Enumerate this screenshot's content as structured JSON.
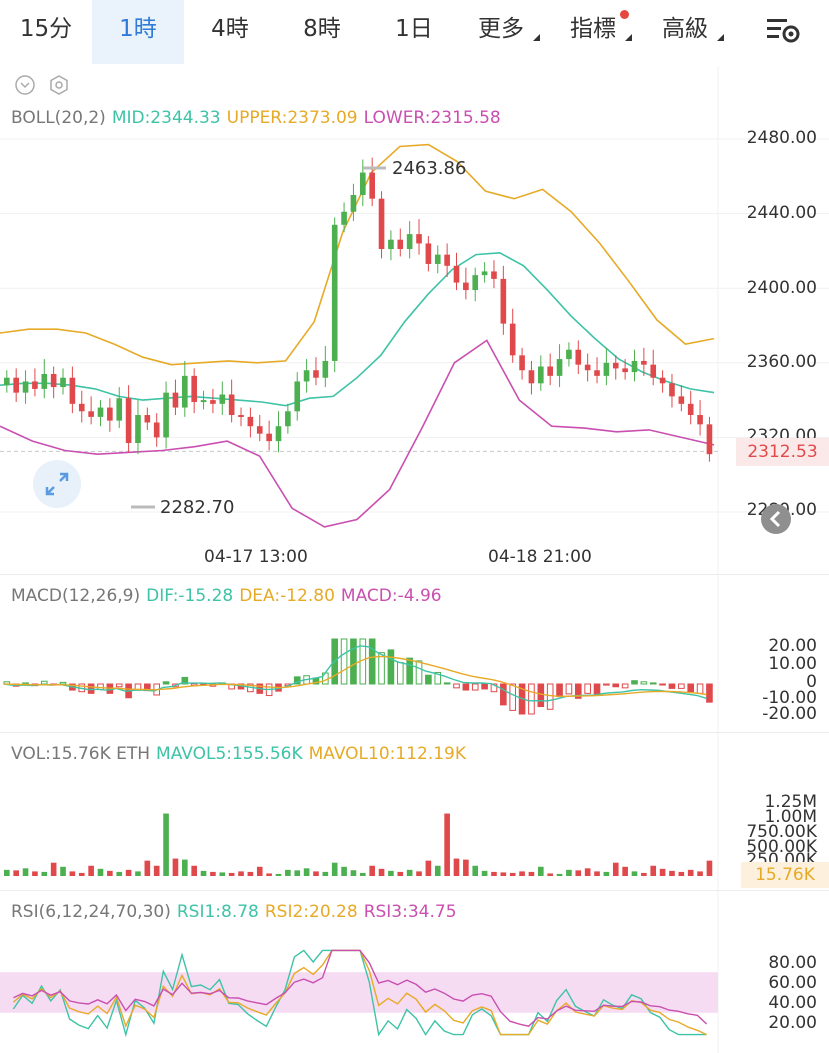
{
  "tabs": [
    {
      "label": "15分",
      "active": false
    },
    {
      "label": "1時",
      "active": true
    },
    {
      "label": "4時",
      "active": false
    },
    {
      "label": "8時",
      "active": false
    },
    {
      "label": "1日",
      "active": false
    },
    {
      "label": "更多",
      "active": false,
      "dropdown": true
    },
    {
      "label": "指標",
      "active": false,
      "dropdown": true,
      "notification_dot": true
    },
    {
      "label": "高級",
      "active": false,
      "dropdown": true
    }
  ],
  "icons": {
    "settings": "chart-settings-icon",
    "collapse": "collapse-circle-icon",
    "config": "hexagon-settings-icon",
    "expand": "expand-arrows-icon",
    "back": "back-arrow-icon"
  },
  "colors": {
    "up": "#4caf50",
    "down": "#e0494b",
    "mid": "#3ec3a6",
    "upper": "#e6aa27",
    "lower": "#c94fb0",
    "active_tab": "#2f7bd8",
    "rsi_band": "#f6dcf3"
  },
  "boll": {
    "indicator": "BOLL(20,2)",
    "mid": "MID:2344.33",
    "upper": "UPPER:2373.09",
    "lower": "LOWER:2315.58",
    "high_marker": "2463.86",
    "low_marker": "2282.70",
    "current_price": "2312.53",
    "y_ticks": [
      "2480.00",
      "2440.00",
      "2400.00",
      "2360.00",
      "2320.00",
      "2280.00"
    ],
    "x_ticks": [
      "04-17 13:00",
      "04-18 21:00"
    ]
  },
  "macd": {
    "indicator": "MACD(12,26,9)",
    "dif": "DIF:-15.28",
    "dea": "DEA:-12.80",
    "macd": "MACD:-4.96",
    "y_ticks": [
      "20.00",
      "10.00",
      "0",
      "-10.00",
      "-20.00"
    ]
  },
  "vol": {
    "indicator": "VOL:15.76K ETH",
    "mavol5": "MAVOL5:155.56K",
    "mavol10": "MAVOL10:112.19K",
    "y_ticks": [
      "1.25M",
      "1.00M",
      "750.00K",
      "500.00K",
      "250.00K"
    ],
    "current": "15.76K"
  },
  "rsi": {
    "indicator": "RSI(6,12,24,70,30)",
    "rsi1": "RSI1:8.78",
    "rsi2": "RSI2:20.28",
    "rsi3": "RSI3:34.75",
    "y_ticks": [
      "80.00",
      "60.00",
      "40.00",
      "20.00"
    ]
  },
  "chart_data": {
    "type": "candlestick",
    "candles_close": [
      2352,
      2344,
      2350,
      2346,
      2354,
      2347,
      2352,
      2338,
      2334,
      2331,
      2336,
      2329,
      2341,
      2317,
      2332,
      2328,
      2320,
      2344,
      2336,
      2353,
      2339,
      2340,
      2338,
      2343,
      2332,
      2331,
      2326,
      2322,
      2318,
      2326,
      2334,
      2350,
      2356,
      2352,
      2361,
      2434,
      2441,
      2450,
      2462,
      2448,
      2421,
      2426,
      2421,
      2429,
      2424,
      2413,
      2418,
      2412,
      2403,
      2399,
      2407,
      2409,
      2405,
      2381,
      2364,
      2356,
      2349,
      2358,
      2353,
      2362,
      2367,
      2359,
      2356,
      2353,
      2360,
      2357,
      2355,
      2361,
      2359,
      2352,
      2349,
      2342,
      2338,
      2332,
      2327,
      2311
    ],
    "boll_mid": [
      2348,
      2349,
      2349,
      2348,
      2346,
      2342,
      2340,
      2341,
      2342,
      2341,
      2340,
      2339,
      2337,
      2341,
      2342,
      2352,
      2364,
      2382,
      2397,
      2410,
      2418,
      2419,
      2412,
      2399,
      2385,
      2373,
      2362,
      2355,
      2350,
      2346,
      2344
    ],
    "boll_upper": [
      2376,
      2378,
      2378,
      2376,
      2370,
      2363,
      2359,
      2360,
      2361,
      2360,
      2361,
      2382,
      2430,
      2462,
      2476,
      2477,
      2468,
      2452,
      2448,
      2453,
      2441,
      2424,
      2404,
      2383,
      2370,
      2373
    ],
    "boll_lower": [
      2326,
      2318,
      2313,
      2311,
      2312,
      2313,
      2315,
      2318,
      2310,
      2282,
      2272,
      2276,
      2292,
      2325,
      2360,
      2372,
      2340,
      2326,
      2325,
      2323,
      2324,
      2320,
      2316
    ],
    "vol_bars_k": [
      120,
      110,
      150,
      90,
      80,
      260,
      180,
      90,
      60,
      200,
      140,
      100,
      80,
      120,
      90,
      300,
      200,
      1220,
      340,
      320,
      200,
      100,
      80,
      70,
      60,
      90,
      80,
      180,
      50,
      40
    ],
    "rsi_range": [
      0,
      100
    ],
    "rsi_band": [
      30,
      70
    ]
  }
}
